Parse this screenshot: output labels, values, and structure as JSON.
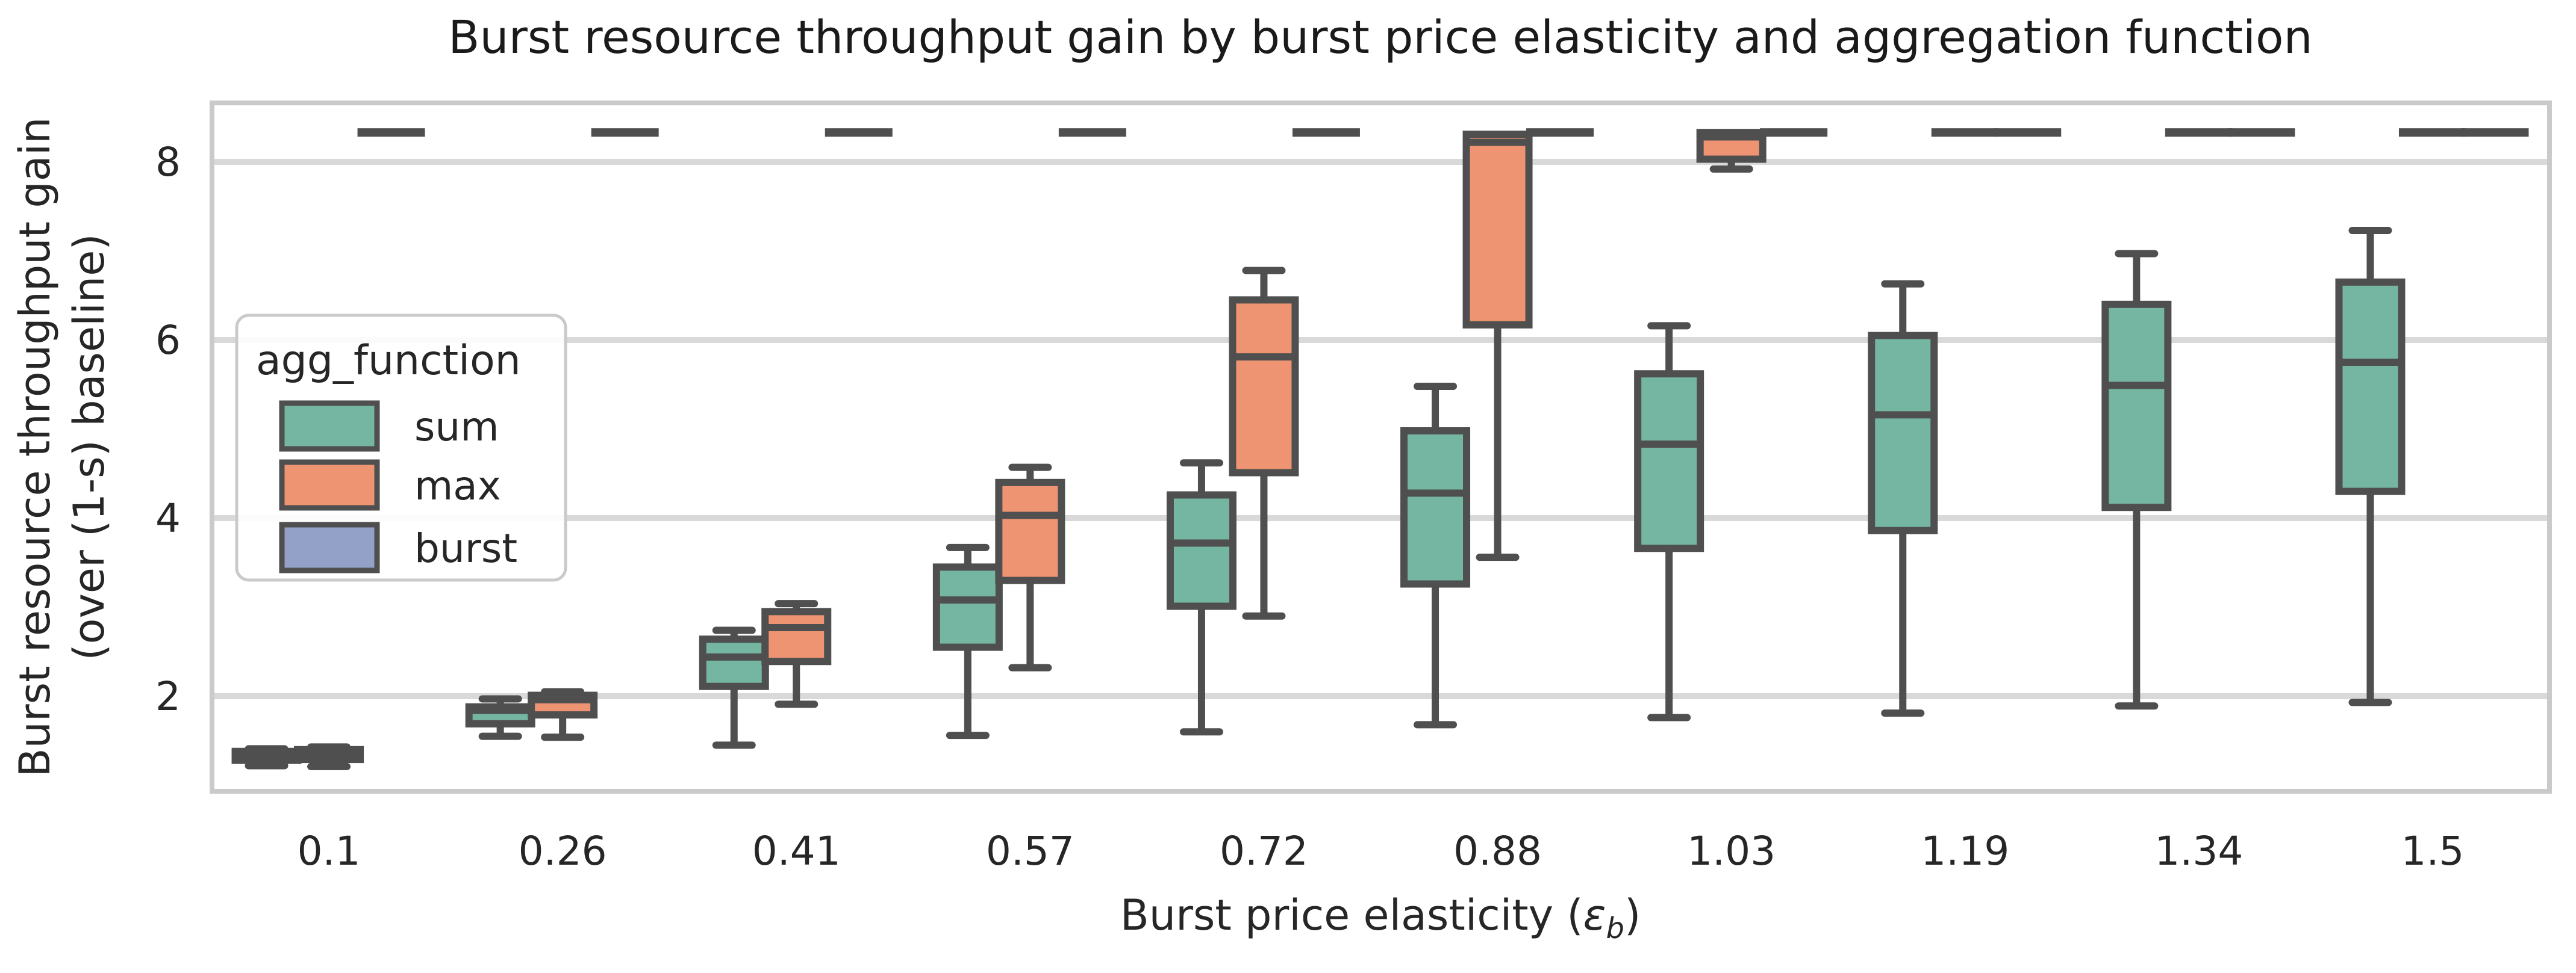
{
  "chart": {
    "title": "Burst resource throughput gain by burst price elasticity and aggregation function",
    "ylabel_line1": "Burst resource throughput gain",
    "ylabel_line2": "(over (1-s) baseline)",
    "xlabel_prefix": "Burst price elasticity (",
    "xlabel_symbol": "ε",
    "xlabel_subscript": "b",
    "xlabel_suffix": ")",
    "legend": {
      "title": "agg_function",
      "entries": [
        {
          "label": "sum",
          "color": "#75b6a2"
        },
        {
          "label": "max",
          "color": "#ee9472"
        },
        {
          "label": "burst",
          "color": "#93a0c7"
        }
      ]
    }
  },
  "chart_data": {
    "type": "grouped_boxplot",
    "title": "Burst resource throughput gain by burst price elasticity and aggregation function",
    "xlabel": "Burst price elasticity (ε_b)",
    "ylabel": "Burst resource throughput gain (over (1-s) baseline)",
    "categories": [
      "0.1",
      "0.26",
      "0.41",
      "0.57",
      "0.72",
      "0.88",
      "1.03",
      "1.19",
      "1.34",
      "1.5"
    ],
    "y_ticks": [
      2,
      4,
      6,
      8
    ],
    "ylim": [
      0.93,
      8.66
    ],
    "grid": "horizontal",
    "legend_position": "upper left",
    "box_format": [
      "whisker_low",
      "q1",
      "median",
      "q3",
      "whisker_high"
    ],
    "series": [
      {
        "name": "sum",
        "color": "#75b6a2",
        "boxes": [
          [
            1.22,
            1.28,
            1.33,
            1.38,
            1.41
          ],
          [
            1.55,
            1.69,
            1.84,
            1.88,
            1.97
          ],
          [
            1.45,
            2.11,
            2.44,
            2.64,
            2.74
          ],
          [
            1.56,
            2.55,
            3.08,
            3.45,
            3.67
          ],
          [
            1.6,
            3.01,
            3.72,
            4.26,
            4.62
          ],
          [
            1.68,
            3.26,
            4.28,
            4.98,
            5.48
          ],
          [
            1.76,
            3.66,
            4.83,
            5.62,
            6.16
          ],
          [
            1.81,
            3.86,
            5.16,
            6.05,
            6.63
          ],
          [
            1.89,
            4.12,
            5.49,
            6.4,
            6.97
          ],
          [
            1.93,
            4.3,
            5.75,
            6.65,
            7.23
          ]
        ]
      },
      {
        "name": "max",
        "color": "#ee9472",
        "boxes": [
          [
            1.21,
            1.29,
            1.35,
            1.4,
            1.43
          ],
          [
            1.54,
            1.79,
            1.96,
            2.01,
            2.05
          ],
          [
            1.91,
            2.39,
            2.77,
            2.95,
            3.04
          ],
          [
            2.32,
            3.3,
            4.03,
            4.4,
            4.57
          ],
          [
            2.9,
            4.51,
            5.81,
            6.45,
            6.78
          ],
          [
            3.56,
            6.17,
            8.22,
            8.31,
            8.33
          ],
          [
            7.92,
            8.03,
            8.28,
            8.33,
            8.33
          ],
          [
            8.33,
            8.33,
            8.33,
            8.33,
            8.33
          ],
          [
            8.33,
            8.33,
            8.33,
            8.33,
            8.33
          ],
          [
            8.33,
            8.33,
            8.33,
            8.33,
            8.33
          ]
        ]
      },
      {
        "name": "burst",
        "color": "#93a0c7",
        "boxes": [
          [
            8.33,
            8.33,
            8.33,
            8.33,
            8.33
          ],
          [
            8.33,
            8.33,
            8.33,
            8.33,
            8.33
          ],
          [
            8.33,
            8.33,
            8.33,
            8.33,
            8.33
          ],
          [
            8.33,
            8.33,
            8.33,
            8.33,
            8.33
          ],
          [
            8.33,
            8.33,
            8.33,
            8.33,
            8.33
          ],
          [
            8.33,
            8.33,
            8.33,
            8.33,
            8.33
          ],
          [
            8.33,
            8.33,
            8.33,
            8.33,
            8.33
          ],
          [
            8.33,
            8.33,
            8.33,
            8.33,
            8.33
          ],
          [
            8.33,
            8.33,
            8.33,
            8.33,
            8.33
          ],
          [
            8.33,
            8.33,
            8.33,
            8.33,
            8.33
          ]
        ]
      }
    ],
    "styles": {
      "edge_color": "#4f4f4f",
      "grid_color": "#d9d9d9",
      "spine_color": "#cacaca",
      "text_color": "#262626",
      "title_color": "#1a1a1a",
      "legend_face": "#ffffff"
    }
  }
}
